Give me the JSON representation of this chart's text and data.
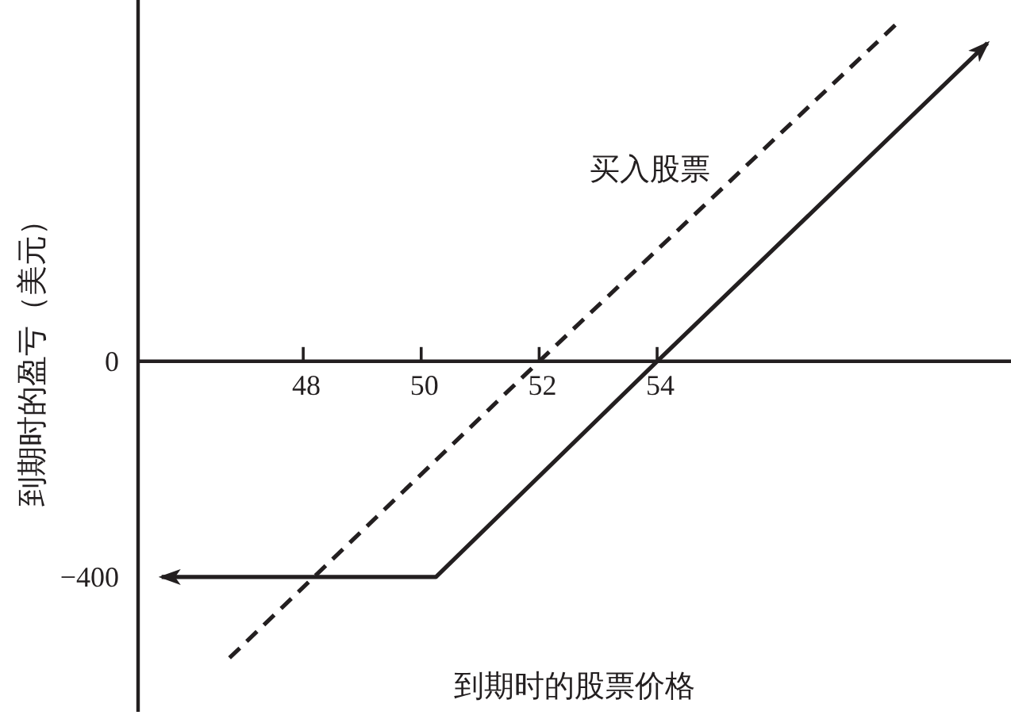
{
  "chart_data": {
    "type": "line",
    "xlabel": "到期时的股票价格",
    "ylabel": "到期时的盈亏（美元）",
    "xlim": [
      45.2,
      60
    ],
    "ylim": [
      -650,
      670
    ],
    "xticks": [
      48,
      50,
      52,
      54
    ],
    "yticks": [
      {
        "value": -400,
        "label": "−400"
      },
      0
    ],
    "series": [
      {
        "color": "#231f20",
        "line_style": "solid",
        "x": [
          45.6,
          50.25,
          54,
          59.6
        ],
        "values": [
          -400,
          -400,
          0,
          590
        ]
      },
      {
        "name": "买入股票",
        "color": "#231f20",
        "line_style": "dashed",
        "x": [
          46.75,
          52,
          58.1
        ],
        "values": [
          -550,
          0,
          630
        ]
      }
    ]
  }
}
